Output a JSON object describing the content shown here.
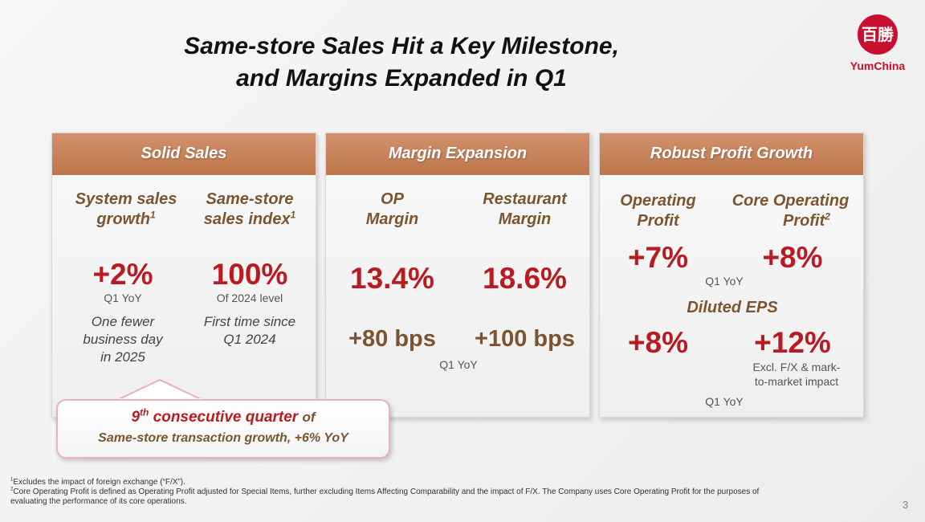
{
  "title": {
    "line1": "Same-store Sales Hit a Key Milestone,",
    "line2": "and Margins Expanded in Q1"
  },
  "logo": {
    "mark": "百勝",
    "text": "YumChina"
  },
  "cards": {
    "sales": {
      "header": "Solid Sales",
      "system_label": "System sales growth",
      "system_sup": "1",
      "system_value": "+2%",
      "system_sub": "Q1 YoY",
      "system_note_1": "One fewer",
      "system_note_2": "business day",
      "system_note_3": "in 2025",
      "sss_label": "Same-store sales index",
      "sss_sup": "1",
      "sss_value": "100%",
      "sss_sub": "Of 2024 level",
      "sss_note_1": "First time since",
      "sss_note_2": "Q1 2024"
    },
    "margin": {
      "header": "Margin Expansion",
      "op_label_1": "OP",
      "op_label_2": "Margin",
      "op_value": "13.4%",
      "op_change": "+80 bps",
      "rest_label_1": "Restaurant",
      "rest_label_2": "Margin",
      "rest_value": "18.6%",
      "rest_change": "+100 bps",
      "sub": "Q1 YoY"
    },
    "profit": {
      "header": "Robust Profit Growth",
      "op_label_1": "Operating",
      "op_label_2": "Profit",
      "op_value": "+7%",
      "core_label_1": "Core Operating",
      "core_label_2": "Profit",
      "core_sup": "2",
      "core_value": "+8%",
      "sub1": "Q1 YoY",
      "eps_label": "Diluted EPS",
      "eps_value": "+8%",
      "eps_excl_value": "+12%",
      "eps_excl_note_1": "Excl. F/X & mark-",
      "eps_excl_note_2": "to-market impact",
      "sub2": "Q1 YoY"
    }
  },
  "callout": {
    "ordinal": "9",
    "ordinal_sup": "th",
    "phrase": "consecutive quarter",
    "of": "of",
    "line2": "Same-store transaction growth, +6% YoY"
  },
  "footnotes": {
    "fn1_mark": "1",
    "fn1": "Excludes the impact of foreign exchange (“F/X”).",
    "fn2_mark": "2",
    "fn2_line1": "Core Operating Profit is defined as Operating Profit adjusted for Special Items, further excluding Items Affecting Comparability and the impact of F/X. The Company uses Core Operating Profit for the purposes of",
    "fn2_line2": "evaluating the performance of its core operations."
  },
  "page_number": "3",
  "colors": {
    "accent_red": "#b81c22",
    "header_brown": "#c6815a",
    "label_brown": "#7a5530",
    "logo_red": "#c8102e"
  }
}
